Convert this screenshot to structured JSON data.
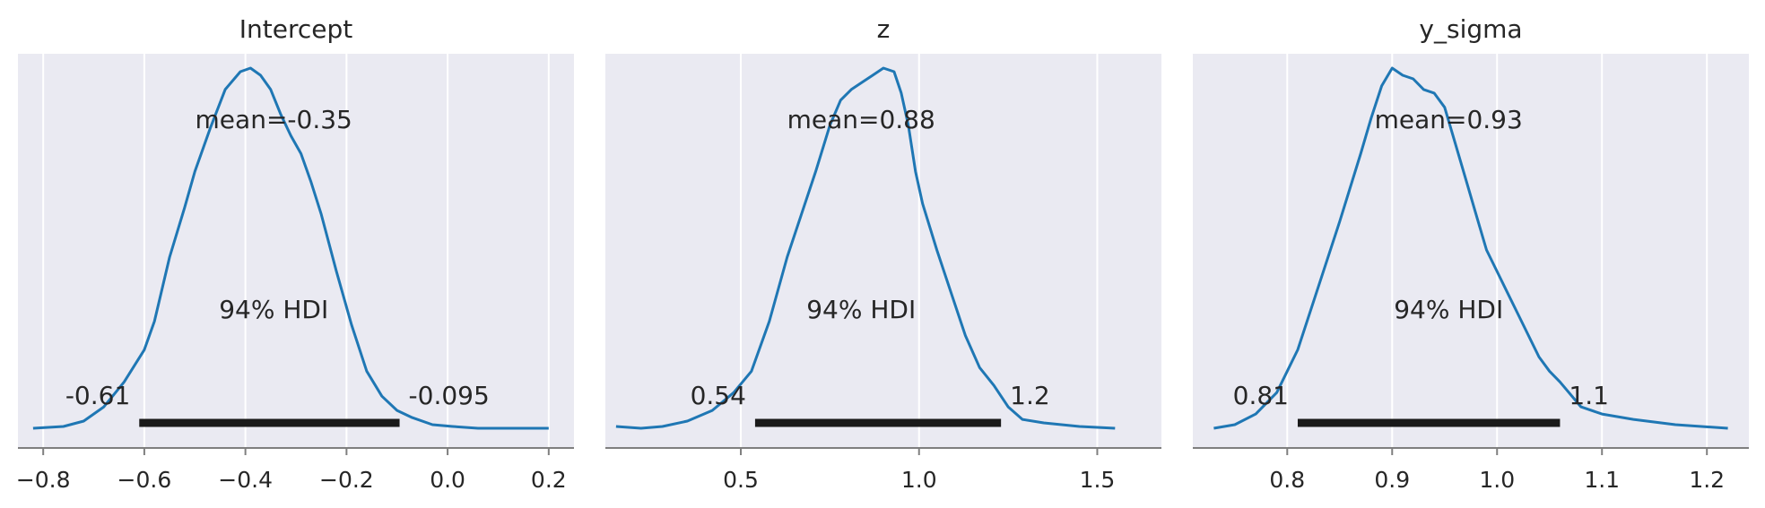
{
  "chart_data": [
    {
      "type": "area",
      "title": "Intercept",
      "xlim": [
        -0.85,
        0.25
      ],
      "ylim": [
        0,
        1
      ],
      "xticks": [
        -0.8,
        -0.6,
        -0.4,
        -0.2,
        0.0,
        0.2
      ],
      "xtick_labels": [
        "−0.8",
        "−0.6",
        "−0.4",
        "−0.2",
        "0.0",
        "0.2"
      ],
      "density": {
        "x": [
          -0.82,
          -0.76,
          -0.72,
          -0.68,
          -0.64,
          -0.6,
          -0.58,
          -0.55,
          -0.52,
          -0.5,
          -0.47,
          -0.44,
          -0.41,
          -0.39,
          -0.37,
          -0.35,
          -0.33,
          -0.31,
          -0.29,
          -0.27,
          -0.25,
          -0.22,
          -0.19,
          -0.16,
          -0.13,
          -0.1,
          -0.07,
          -0.03,
          0.01,
          0.06,
          0.12,
          0.2
        ],
        "y": [
          0.0,
          0.005,
          0.02,
          0.06,
          0.13,
          0.22,
          0.3,
          0.48,
          0.62,
          0.72,
          0.84,
          0.95,
          1.0,
          1.01,
          0.99,
          0.95,
          0.88,
          0.82,
          0.77,
          0.69,
          0.6,
          0.44,
          0.29,
          0.16,
          0.09,
          0.05,
          0.03,
          0.01,
          0.005,
          0.0,
          0.0,
          0.0
        ]
      },
      "mean_label": "mean=-0.35",
      "hdi_label": "94% HDI",
      "hdi": [
        -0.61,
        -0.095
      ],
      "hdi_low_label": "-0.61",
      "hdi_high_label": "-0.095"
    },
    {
      "type": "area",
      "title": "z",
      "xlim": [
        0.12,
        1.68
      ],
      "ylim": [
        0,
        1
      ],
      "xticks": [
        0.5,
        1.0,
        1.5
      ],
      "xtick_labels": [
        "0.5",
        "1.0",
        "1.5"
      ],
      "density": {
        "x": [
          0.15,
          0.22,
          0.28,
          0.35,
          0.42,
          0.48,
          0.53,
          0.58,
          0.63,
          0.67,
          0.71,
          0.75,
          0.78,
          0.81,
          0.84,
          0.87,
          0.9,
          0.93,
          0.95,
          0.97,
          0.99,
          1.01,
          1.05,
          1.09,
          1.13,
          1.17,
          1.21,
          1.25,
          1.29,
          1.35,
          1.45,
          1.55
        ],
        "y": [
          0.005,
          0.0,
          0.005,
          0.02,
          0.05,
          0.1,
          0.16,
          0.3,
          0.48,
          0.6,
          0.72,
          0.85,
          0.92,
          0.95,
          0.97,
          0.99,
          1.01,
          1.0,
          0.94,
          0.85,
          0.72,
          0.63,
          0.5,
          0.38,
          0.26,
          0.17,
          0.12,
          0.06,
          0.025,
          0.015,
          0.005,
          0.0
        ]
      },
      "mean_label": "mean=0.88",
      "hdi_label": "94% HDI",
      "hdi": [
        0.54,
        1.23
      ],
      "hdi_low_label": "0.54",
      "hdi_high_label": "1.2"
    },
    {
      "type": "area",
      "title": "y_sigma",
      "xlim": [
        0.71,
        1.24
      ],
      "ylim": [
        0,
        1
      ],
      "xticks": [
        0.8,
        0.9,
        1.0,
        1.1,
        1.2
      ],
      "xtick_labels": [
        "0.8",
        "0.9",
        "1.0",
        "1.1",
        "1.2"
      ],
      "density": {
        "x": [
          0.73,
          0.75,
          0.77,
          0.79,
          0.81,
          0.83,
          0.85,
          0.87,
          0.88,
          0.89,
          0.9,
          0.91,
          0.92,
          0.93,
          0.94,
          0.95,
          0.96,
          0.97,
          0.98,
          0.99,
          1.0,
          1.01,
          1.02,
          1.03,
          1.04,
          1.05,
          1.06,
          1.08,
          1.1,
          1.13,
          1.17,
          1.22
        ],
        "y": [
          0.0,
          0.01,
          0.04,
          0.1,
          0.22,
          0.4,
          0.58,
          0.77,
          0.87,
          0.96,
          1.01,
          0.99,
          0.98,
          0.95,
          0.94,
          0.9,
          0.8,
          0.7,
          0.6,
          0.5,
          0.44,
          0.38,
          0.32,
          0.26,
          0.2,
          0.16,
          0.13,
          0.06,
          0.04,
          0.025,
          0.01,
          0.0
        ]
      },
      "mean_label": "mean=0.93",
      "hdi_label": "94% HDI",
      "hdi": [
        0.81,
        1.06
      ],
      "hdi_low_label": "0.81",
      "hdi_high_label": "1.1"
    }
  ],
  "colors": {
    "curve": "#1f77b4",
    "hdi_bar": "#1a1a1a",
    "panel_bg": "#eaeaf2",
    "grid": "#ffffff",
    "axis": "#7f7f7f"
  }
}
